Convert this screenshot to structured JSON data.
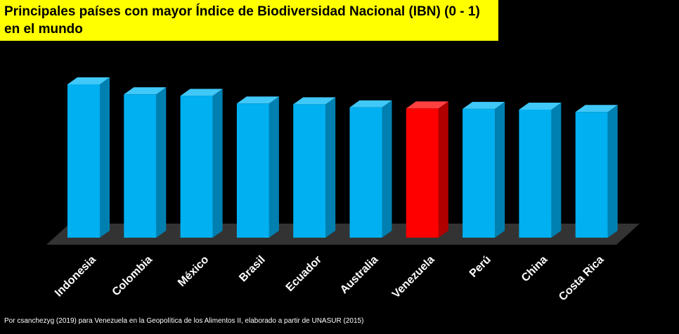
{
  "chart_data": {
    "type": "bar",
    "title_lines": [
      "Principales países con mayor Índice de Biodiversidad Nacional (IBN) (0 - 1)",
      "en el mundo"
    ],
    "categories": [
      "Indonesia",
      "Colombia",
      "México",
      "Brasil",
      "Ecuador",
      "Australia",
      "Venezuela",
      "Perú",
      "China",
      "Costa Rica"
    ],
    "values": [
      1.0,
      0.935,
      0.925,
      0.875,
      0.87,
      0.85,
      0.843,
      0.84,
      0.835,
      0.82
    ],
    "ylim": [
      0,
      1
    ],
    "xlabel": "",
    "ylabel": "",
    "grid": false,
    "legend": "none",
    "highlight_category": "Venezuela"
  },
  "colors": {
    "background": "#000000",
    "title_background": "#ffff00",
    "bar_front": "#00b0f0",
    "bar_side": "#0080b0",
    "bar_top": "#40c8f8",
    "highlight_front": "#ff0000",
    "highlight_side": "#b00000",
    "highlight_top": "#ff4040",
    "floor": "#333333",
    "text": "#ffffff"
  },
  "source_note": "Por csanchezyg (2019)  para Venezuela  en la Geopolítica  de los Alimentos  II, elaborado   a partir  de  UNASUR (2015)"
}
